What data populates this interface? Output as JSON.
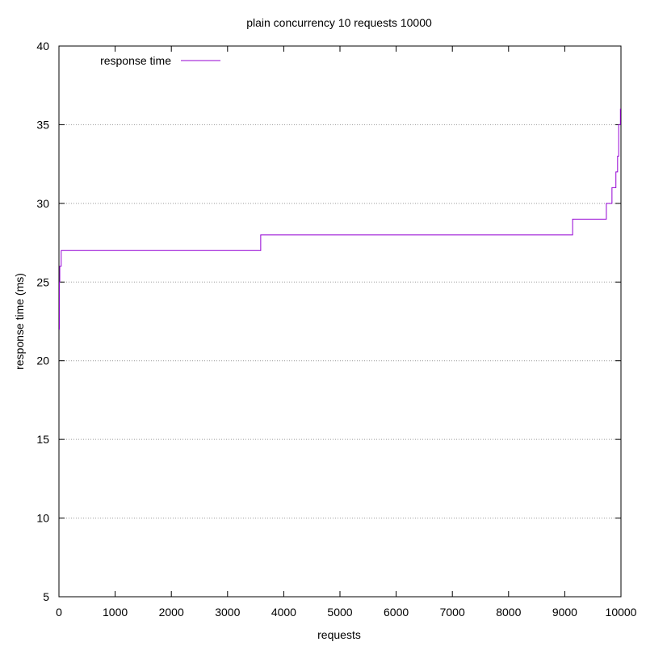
{
  "chart_data": {
    "type": "line",
    "title": "plain concurrency 10 requests 10000",
    "xlabel": "requests",
    "ylabel": "response time (ms)",
    "xlim": [
      0,
      10000
    ],
    "ylim": [
      5,
      40
    ],
    "x_ticks": [
      0,
      1000,
      2000,
      3000,
      4000,
      5000,
      6000,
      7000,
      8000,
      9000,
      10000
    ],
    "y_ticks": [
      5,
      10,
      15,
      20,
      25,
      30,
      35,
      40
    ],
    "grid": "horizontal dotted",
    "legend_position": "top-left",
    "series": [
      {
        "name": "response time",
        "color": "#9400d3",
        "step": true,
        "points": [
          [
            0,
            22
          ],
          [
            8,
            25
          ],
          [
            15,
            26
          ],
          [
            40,
            27
          ],
          [
            3590,
            28
          ],
          [
            9140,
            29
          ],
          [
            9740,
            30
          ],
          [
            9840,
            31
          ],
          [
            9910,
            32
          ],
          [
            9940,
            33
          ],
          [
            9960,
            35
          ],
          [
            9990,
            36
          ],
          [
            10000,
            36
          ]
        ]
      }
    ]
  }
}
